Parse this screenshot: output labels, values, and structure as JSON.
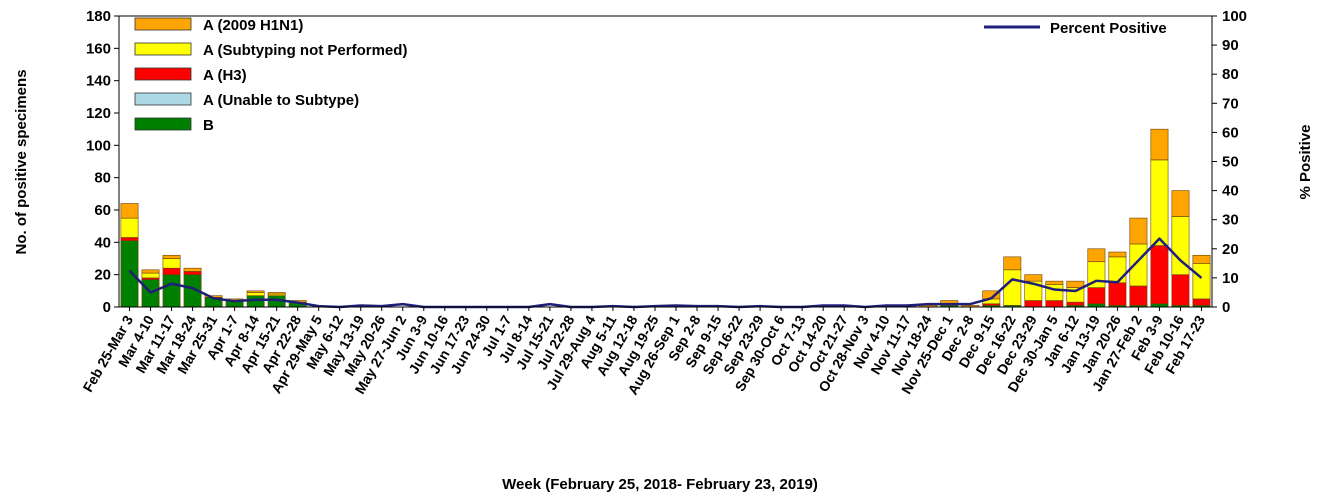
{
  "chart_data": {
    "type": "bar",
    "stacked": true,
    "xlabel": "Week (February 25, 2018- February 23, 2019)",
    "ylabel": "No. of positive specimens",
    "y2label": "% Positive",
    "ylim": [
      0,
      180
    ],
    "y_ticks": [
      0,
      20,
      40,
      60,
      80,
      100,
      120,
      140,
      160,
      180
    ],
    "y2lim": [
      0,
      100
    ],
    "y2_ticks": [
      0,
      10,
      20,
      30,
      40,
      50,
      60,
      70,
      80,
      90,
      100
    ],
    "grid": false,
    "legend_placement": "top-left",
    "line_legend_placement": "top-right",
    "categories": [
      "Feb 25-Mar 3",
      "Mar 4-10",
      "Mar 11-17",
      "Mar 18-24",
      "Mar 25-31",
      "Apr 1-7",
      "Apr 8-14",
      "Apr 15-21",
      "Apr 22-28",
      "Apr 29-May 5",
      "May 6-12",
      "May 13-19",
      "May 20-26",
      "May 27-Jun 2",
      "Jun 3-9",
      "Jun 10-16",
      "Jun 17-23",
      "Jun 24-30",
      "Jul 1-7",
      "Jul 8-14",
      "Jul 15-21",
      "Jul 22-28",
      "Jul 29-Aug 4",
      "Aug 5-11",
      "Aug 12-18",
      "Aug 19-25",
      "Aug 26-Sep 1",
      "Sep 2-8",
      "Sep 9-15",
      "Sep 16-22",
      "Sep 23-29",
      "Sep 30-Oct 6",
      "Oct 7-13",
      "Oct 14-20",
      "Oct 21-27",
      "Oct 28-Nov 3",
      "Nov 4-10",
      "Nov 11-17",
      "Nov 18-24",
      "Nov 25-Dec 1",
      "Dec 2-8",
      "Dec 9-15",
      "Dec 16-22",
      "Dec 23-29",
      "Dec 30-Jan 5",
      "Jan 6-12",
      "Jan 13-19",
      "Jan 20-26",
      "Jan 27-Feb 2",
      "Feb 3-9",
      "Feb 10-16",
      "Feb 17-23"
    ],
    "series": [
      {
        "name": "B",
        "color": "#008000",
        "values": [
          41,
          17,
          20,
          20,
          6,
          4,
          7,
          7,
          3,
          0,
          0,
          0,
          0,
          0,
          0,
          0,
          0,
          0,
          0,
          0,
          0,
          0,
          0,
          0,
          0,
          0,
          0,
          0,
          0,
          0,
          0,
          0,
          0,
          0,
          0,
          0,
          0,
          0,
          0,
          1,
          0,
          1,
          1,
          0,
          0,
          1,
          2,
          1,
          1,
          2,
          1,
          1
        ]
      },
      {
        "name": "A (Unable to Subtype)",
        "color": "#add8e6",
        "values": [
          0,
          0,
          0,
          0,
          0,
          0,
          0,
          0,
          0,
          0,
          0,
          0,
          0,
          0,
          0,
          0,
          0,
          0,
          0,
          0,
          0,
          0,
          0,
          0,
          0,
          0,
          0,
          0,
          0,
          0,
          0,
          0,
          0,
          0,
          0,
          0,
          0,
          0,
          0,
          0,
          0,
          0,
          0,
          0,
          0,
          0,
          0,
          0,
          0,
          0,
          0,
          0
        ]
      },
      {
        "name": "A (H3)",
        "color": "#ff0000",
        "values": [
          2,
          1,
          4,
          2,
          0,
          0,
          0,
          0,
          0,
          0,
          0,
          0,
          0,
          0,
          0,
          0,
          0,
          0,
          0,
          0,
          0,
          0,
          0,
          0,
          0,
          0,
          0,
          0,
          0,
          0,
          0,
          0,
          0,
          0,
          0,
          0,
          0,
          0,
          0,
          0,
          0,
          1,
          0,
          4,
          4,
          2,
          10,
          14,
          12,
          36,
          19,
          4
        ]
      },
      {
        "name": "A (Subtyping not Performed)",
        "color": "#ffff00",
        "values": [
          12,
          3,
          6,
          0,
          0,
          0,
          2,
          1,
          0,
          0,
          0,
          0,
          0,
          0,
          0,
          0,
          0,
          0,
          0,
          0,
          0,
          0,
          0,
          0,
          0,
          0,
          0,
          0,
          0,
          0,
          0,
          0,
          0,
          0,
          0,
          0,
          0,
          0,
          0,
          1,
          0,
          3,
          22,
          12,
          10,
          9,
          16,
          16,
          26,
          53,
          36,
          22
        ]
      },
      {
        "name": "A (2009 H1N1)",
        "color": "#ffa500",
        "values": [
          9,
          2,
          2,
          2,
          1,
          1,
          1,
          1,
          1,
          0,
          0,
          0,
          0,
          0,
          0,
          0,
          0,
          0,
          0,
          0,
          0,
          0,
          0,
          0,
          0,
          0,
          0,
          0,
          0,
          0,
          0,
          0,
          0,
          0,
          0,
          0,
          1,
          1,
          1,
          2,
          1,
          5,
          8,
          4,
          2,
          4,
          8,
          3,
          16,
          19,
          16,
          5
        ]
      }
    ],
    "legend_order": [
      "A (2009 H1N1)",
      "A (Subtyping not Performed)",
      "A (H3)",
      "A (Unable to Subtype)",
      "B"
    ],
    "line": {
      "name": "Percent Positive",
      "color": "#1f1f7a",
      "axis": "right",
      "values": [
        12.5,
        5,
        8,
        6.5,
        3,
        2,
        2.5,
        2.5,
        1.5,
        0.3,
        0,
        0.5,
        0.3,
        1,
        0,
        0,
        0,
        0,
        0,
        0,
        1,
        0,
        0,
        0.3,
        0,
        0.3,
        0.5,
        0.3,
        0.3,
        0,
        0.3,
        0,
        0,
        0.5,
        0.5,
        0,
        0.5,
        0.5,
        1,
        1,
        1,
        3,
        9.5,
        8,
        6,
        5.5,
        9,
        8.5,
        16,
        23.5,
        16,
        10
      ]
    }
  }
}
